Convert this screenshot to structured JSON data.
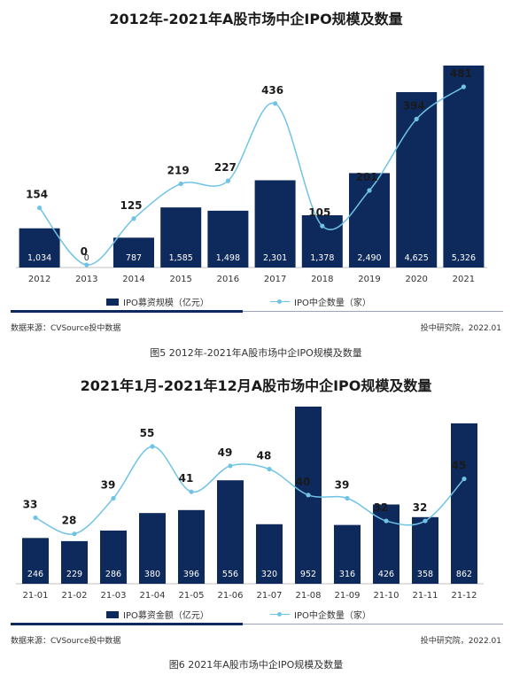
{
  "colors": {
    "bar": "#0e2a5c",
    "line": "#6fc3e6",
    "axis": "#bfbfbf"
  },
  "chart1": {
    "title": "2012年-2021年A股市场中企IPO规模及数量",
    "legend_bar": "IPO募资规模（亿元）",
    "legend_line": "IPO中企数量（家）",
    "source": "数据来源：CVSource投中数据",
    "credit": "投中研究院，2022.01",
    "caption": "图5 2012年-2021年A股市场中企IPO规模及数量"
  },
  "chart2": {
    "title": "2021年1月-2021年12月A股市场中企IPO规模及数量",
    "legend_bar": "IPO募资金额（亿元）",
    "legend_line": "IPO中企数量（家）",
    "source": "数据来源：CVSource投中数据",
    "credit": "投中研究院，2022.01",
    "caption": "图6 2021年A股市场中企IPO规模及数量"
  },
  "chart_data": [
    {
      "type": "bar",
      "title": "2012年-2021年A股市场中企IPO规模及数量",
      "categories": [
        "2012",
        "2013",
        "2014",
        "2015",
        "2016",
        "2017",
        "2018",
        "2019",
        "2020",
        "2021"
      ],
      "series": [
        {
          "name": "IPO募资规模（亿元）",
          "type": "bar",
          "values": [
            1034,
            0,
            787,
            1585,
            1498,
            2301,
            1378,
            2490,
            4625,
            5326
          ],
          "labels": [
            "1,034",
            "0",
            "787",
            "1,585",
            "1,498",
            "2,301",
            "1,378",
            "2,490",
            "4,625",
            "5,326"
          ]
        },
        {
          "name": "IPO中企数量（家）",
          "type": "line",
          "values": [
            154,
            0,
            125,
            219,
            227,
            436,
            105,
            201,
            394,
            481
          ]
        }
      ],
      "legend": "bottom",
      "grid": false
    },
    {
      "type": "bar",
      "title": "2021年1月-2021年12月A股市场中企IPO规模及数量",
      "categories": [
        "21-01",
        "21-02",
        "21-03",
        "21-04",
        "21-05",
        "21-06",
        "21-07",
        "21-08",
        "21-09",
        "21-10",
        "21-11",
        "21-12"
      ],
      "series": [
        {
          "name": "IPO募资金额（亿元）",
          "type": "bar",
          "values": [
            246,
            229,
            286,
            380,
            396,
            556,
            320,
            952,
            316,
            426,
            358,
            862
          ],
          "labels": [
            "246",
            "229",
            "286",
            "380",
            "396",
            "556",
            "320",
            "952",
            "316",
            "426",
            "358",
            "862"
          ]
        },
        {
          "name": "IPO中企数量（家）",
          "type": "line",
          "values": [
            33,
            28,
            39,
            55,
            41,
            49,
            48,
            40,
            39,
            32,
            32,
            45
          ]
        }
      ],
      "legend": "bottom",
      "grid": false
    }
  ]
}
